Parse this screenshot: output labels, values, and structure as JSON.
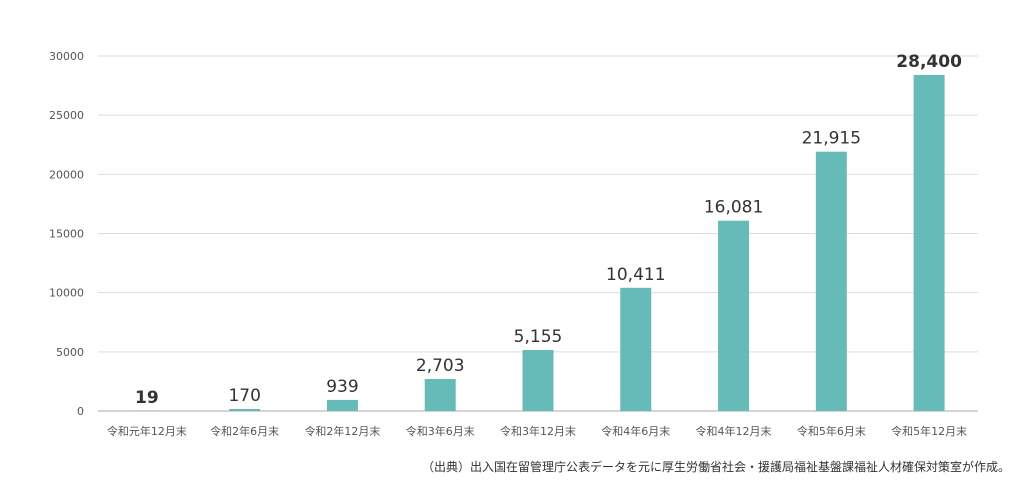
{
  "chart_data": {
    "type": "bar",
    "categories": [
      "令和元年12月末",
      "令和2年6月末",
      "令和2年12月末",
      "令和3年6月末",
      "令和3年12月末",
      "令和4年6月末",
      "令和4年12月末",
      "令和5年6月末",
      "令和5年12月末"
    ],
    "values": [
      19,
      170,
      939,
      2703,
      5155,
      10411,
      16081,
      21915,
      28400
    ],
    "value_labels": [
      "19",
      "170",
      "939",
      "2,703",
      "5,155",
      "10,411",
      "16,081",
      "21,915",
      "28,400"
    ],
    "ylim": [
      0,
      30000
    ],
    "yticks": [
      0,
      5000,
      10000,
      15000,
      20000,
      25000,
      30000
    ],
    "ytick_labels": [
      "0",
      "5000",
      "10000",
      "15000",
      "20000",
      "25000",
      "30000"
    ],
    "grid": true,
    "highlight_index": 8,
    "bold_label_indices": [
      0,
      8
    ],
    "colors": {
      "bar": "#66bbb8",
      "grid": "#dddddd",
      "axis": "#aaaaaa",
      "label": "#333333",
      "highlight_label": "#e0577a"
    }
  },
  "source_note": "（出典）出入国在留管理庁公表データを元に厚生労働省社会・援護局福祉基盤課福祉人材確保対策室が作成。"
}
